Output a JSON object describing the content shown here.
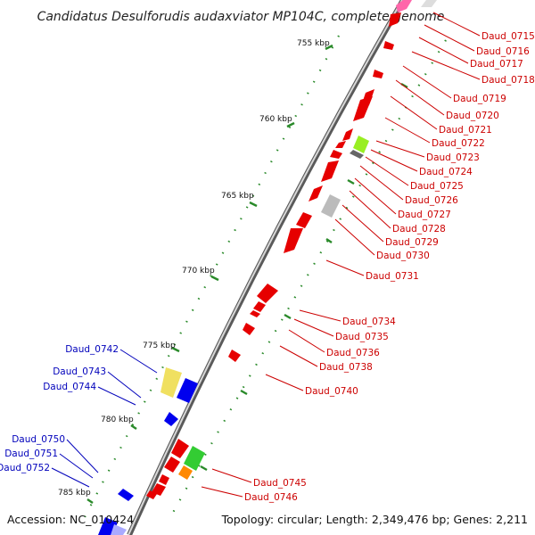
{
  "title": "Candidatus Desulforudis audaxviator MP104C, complete genome",
  "accession": "Accession: NC_010424",
  "topology": "Topology: circular; Length: 2,349,476 bp; Genes: 2,211",
  "colors": {
    "forward_label": "#cc0000",
    "reverse_label": "#0000bb",
    "backbone": "#777777",
    "tick": "#2a8a2a"
  },
  "scale_labels": [
    "755 kbp",
    "760 kbp",
    "765 kbp",
    "770 kbp",
    "775 kbp",
    "780 kbp",
    "785 kbp"
  ],
  "forward_genes": [
    {
      "label": "Daud_0715"
    },
    {
      "label": "Daud_0716"
    },
    {
      "label": "Daud_0717"
    },
    {
      "label": "Daud_0718"
    },
    {
      "label": "Daud_0719"
    },
    {
      "label": "Daud_0720"
    },
    {
      "label": "Daud_0721"
    },
    {
      "label": "Daud_0722"
    },
    {
      "label": "Daud_0723"
    },
    {
      "label": "Daud_0724"
    },
    {
      "label": "Daud_0725"
    },
    {
      "label": "Daud_0726"
    },
    {
      "label": "Daud_0727"
    },
    {
      "label": "Daud_0728"
    },
    {
      "label": "Daud_0729"
    },
    {
      "label": "Daud_0730"
    },
    {
      "label": "Daud_0731"
    },
    {
      "label": "Daud_0734"
    },
    {
      "label": "Daud_0735"
    },
    {
      "label": "Daud_0736"
    },
    {
      "label": "Daud_0738"
    },
    {
      "label": "Daud_0740"
    },
    {
      "label": "Daud_0745"
    },
    {
      "label": "Daud_0746"
    }
  ],
  "reverse_genes": [
    {
      "label": "Daud_0742"
    },
    {
      "label": "Daud_0743"
    },
    {
      "label": "Daud_0744"
    },
    {
      "label": "Daud_0750"
    },
    {
      "label": "Daud_0751"
    },
    {
      "label": "Daud_0752"
    }
  ]
}
